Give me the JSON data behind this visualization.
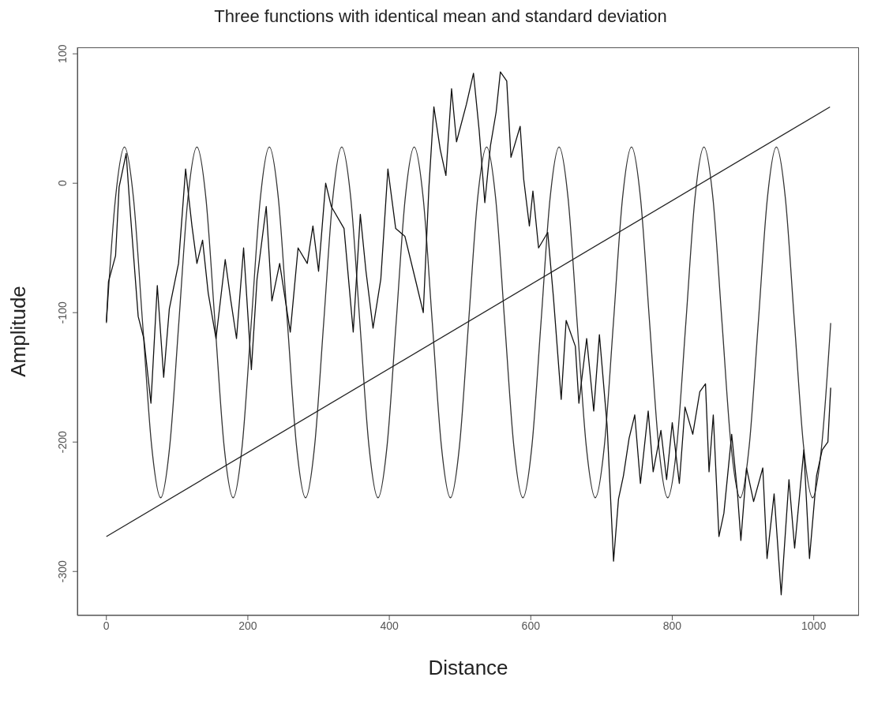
{
  "chart_data": {
    "type": "line",
    "title": "Three functions with identical mean and standard deviation",
    "xlabel": "Distance",
    "ylabel": "Amplitude",
    "xlim": [
      -41,
      1064
    ],
    "ylim": [
      -334,
      105
    ],
    "xticks": [
      0,
      200,
      400,
      600,
      800,
      1000
    ],
    "yticks": [
      -300,
      -200,
      -100,
      0,
      100
    ],
    "grid": false,
    "marker": "none",
    "line_style": "solid",
    "series": [
      {
        "color": "#333333",
        "x": [
          0,
          12.8,
          25.6,
          38.4,
          51.2,
          64,
          76.8,
          89.6,
          102.4,
          115.2,
          128,
          140.8,
          153.6,
          166.4,
          179.2,
          192,
          204.8,
          217.6,
          230.4,
          243.2,
          256,
          268.8,
          281.6,
          294.4,
          307.2,
          320,
          332.8,
          345.6,
          358.4,
          371.2,
          384,
          396.8,
          409.6,
          422.4,
          435.2,
          448,
          460.8,
          473.6,
          486.4,
          499.2,
          512,
          524.8,
          537.6,
          550.4,
          563.2,
          576,
          588.8,
          601.6,
          614.4,
          627.2,
          640,
          652.8,
          665.6,
          678.4,
          691.2,
          704,
          716.8,
          729.6,
          742.4,
          755.2,
          768,
          780.8,
          793.6,
          806.4,
          819.2,
          832,
          844.8,
          857.6,
          870.4,
          883.2,
          896,
          908.8,
          921.6,
          934.4,
          947.2,
          960,
          972.8,
          985.6,
          998.4,
          1011.2,
          1024
        ],
        "values": [
          -108,
          -12,
          28,
          -12,
          -108,
          -203,
          -243,
          -203,
          -108,
          -12,
          28,
          -12,
          -108,
          -203,
          -243,
          -203,
          -108,
          -12,
          28,
          -12,
          -108,
          -203,
          -243,
          -203,
          -108,
          -12,
          28,
          -12,
          -108,
          -203,
          -243,
          -203,
          -108,
          -12,
          28,
          -12,
          -108,
          -203,
          -243,
          -203,
          -108,
          -12,
          28,
          -12,
          -108,
          -203,
          -243,
          -203,
          -108,
          -12,
          28,
          -12,
          -108,
          -203,
          -243,
          -203,
          -108,
          -12,
          28,
          -12,
          -108,
          -203,
          -243,
          -203,
          -108,
          -12,
          28,
          -12,
          -108,
          -203,
          -243,
          -203,
          -108,
          -12,
          28,
          -12,
          -108,
          -203,
          -243,
          -203,
          -108
        ]
      },
      {
        "color": "#222222",
        "x": [
          0,
          1023
        ],
        "values": [
          -273,
          59
        ]
      },
      {
        "color": "#111111",
        "x": [
          0,
          3,
          13,
          18,
          28,
          34,
          45,
          53,
          63,
          72,
          81,
          89,
          102,
          112,
          121,
          128,
          136,
          144,
          155,
          168,
          176,
          184,
          194,
          205,
          213,
          226,
          234,
          245,
          260,
          271,
          284,
          292,
          300,
          310,
          318,
          336,
          349,
          359,
          367,
          377,
          388,
          398,
          409,
          422,
          438,
          448,
          456,
          463,
          472,
          480,
          488,
          495,
          509,
          519,
          527,
          535,
          543,
          551,
          557,
          566,
          572,
          585,
          590,
          598,
          603,
          611,
          624,
          632,
          643,
          650,
          663,
          668,
          679,
          689,
          697,
          708,
          717,
          724,
          731,
          739,
          747,
          755,
          766,
          773,
          784,
          792,
          800,
          810,
          818,
          829,
          839,
          847,
          852,
          858,
          866,
          873,
          884,
          892,
          897,
          905,
          915,
          928,
          934,
          944,
          954,
          965,
          973,
          986,
          994,
          1004,
          1012,
          1020,
          1024
        ],
        "values": [
          -107,
          -76,
          -56,
          -3,
          23,
          -24,
          -103,
          -120,
          -170,
          -79,
          -150,
          -97,
          -62,
          11,
          -33,
          -62,
          -44,
          -85,
          -120,
          -59,
          -91,
          -120,
          -50,
          -144,
          -74,
          -18,
          -91,
          -62,
          -115,
          -50,
          -62,
          -33,
          -68,
          0,
          -18,
          -35,
          -115,
          -24,
          -68,
          -112,
          -74,
          11,
          -35,
          -41,
          -77,
          -100,
          -3,
          59,
          26,
          6,
          73,
          32,
          61,
          85,
          41,
          -15,
          29,
          55,
          86,
          79,
          20,
          44,
          3,
          -33,
          -6,
          -50,
          -38,
          -88,
          -167,
          -106,
          -126,
          -170,
          -120,
          -176,
          -117,
          -188,
          -292,
          -244,
          -226,
          -197,
          -179,
          -232,
          -176,
          -223,
          -191,
          -229,
          -185,
          -232,
          -173,
          -194,
          -161,
          -155,
          -223,
          -179,
          -273,
          -255,
          -194,
          -238,
          -276,
          -220,
          -246,
          -220,
          -290,
          -240,
          -318,
          -229,
          -282,
          -206,
          -290,
          -226,
          -206,
          -200,
          -158
        ]
      }
    ]
  }
}
